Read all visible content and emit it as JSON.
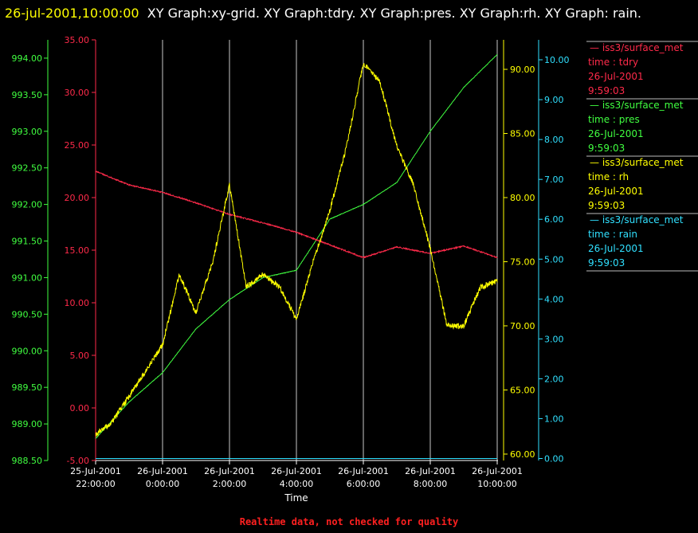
{
  "header": {
    "timestamp": "26-jul-2001,10:00:00",
    "text": "XY Graph:xy-grid.  XY Graph:tdry.  XY Graph:pres.  XY Graph:rh.  XY Graph: rain."
  },
  "footer": {
    "text": "Realtime data, not checked for quality",
    "color": "#ff2020"
  },
  "legend": [
    {
      "series": "— iss3/surface_met",
      "field": "time : tdry",
      "date": "26-Jul-2001",
      "time": "9:59:03",
      "color": "#ff2a4a"
    },
    {
      "series": "— iss3/surface_met",
      "field": "time : pres",
      "date": "26-Jul-2001",
      "time": "9:59:03",
      "color": "#40ff40"
    },
    {
      "series": "— iss3/surface_met",
      "field": "time : rh",
      "date": "26-Jul-2001",
      "time": "9:59:03",
      "color": "#ffff00"
    },
    {
      "series": "— iss3/surface_met",
      "field": "time : rain",
      "date": "26-Jul-2001",
      "time": "9:59:03",
      "color": "#30e0ff"
    }
  ],
  "chart_data": {
    "type": "line",
    "xlabel": "Time",
    "xlim": [
      "25-Jul-2001 22:00:00",
      "26-Jul-2001 10:00:00"
    ],
    "x_ticks": [
      {
        "date": "25-Jul-2001",
        "time": "22:00:00"
      },
      {
        "date": "26-Jul-2001",
        "time": "0:00:00"
      },
      {
        "date": "26-Jul-2001",
        "time": "2:00:00"
      },
      {
        "date": "26-Jul-2001",
        "time": "4:00:00"
      },
      {
        "date": "26-Jul-2001",
        "time": "6:00:00"
      },
      {
        "date": "26-Jul-2001",
        "time": "8:00:00"
      },
      {
        "date": "26-Jul-2001",
        "time": "10:00:00"
      }
    ],
    "x_hours": [
      -2,
      0,
      2,
      4,
      6,
      8,
      10
    ],
    "grid_vertical": true,
    "axes": {
      "tdry": {
        "color": "#ff2a4a",
        "ylim": [
          -5,
          35
        ],
        "ticks": [
          "-5.00",
          "0.00",
          "5.00",
          "10.00",
          "15.00",
          "20.00",
          "25.00",
          "30.00",
          "35.00"
        ]
      },
      "pres": {
        "color": "#40ff40",
        "ylim": [
          988.5,
          994.25
        ],
        "ticks": [
          "988.50",
          "989.00",
          "989.50",
          "990.00",
          "990.50",
          "991.00",
          "991.50",
          "992.00",
          "992.50",
          "993.00",
          "993.50",
          "994.00"
        ]
      },
      "rh": {
        "color": "#ffff00",
        "ylim": [
          59.5,
          92.3
        ],
        "ticks": [
          "60.00",
          "65.00",
          "70.00",
          "75.00",
          "80.00",
          "85.00",
          "90.00"
        ]
      },
      "rain": {
        "color": "#30e0ff",
        "ylim": [
          -0.05,
          10.5
        ],
        "ticks": [
          "0.00",
          "1.00",
          "2.00",
          "3.00",
          "4.00",
          "5.00",
          "6.00",
          "7.00",
          "8.00",
          "9.00",
          "10.00"
        ]
      }
    },
    "series": [
      {
        "key": "tdry",
        "x": [
          "25-Jul-2001 22:00",
          "25-Jul-2001 23:00",
          "26-Jul-2001 00:00",
          "26-Jul-2001 01:00",
          "26-Jul-2001 02:00",
          "26-Jul-2001 03:00",
          "26-Jul-2001 04:00",
          "26-Jul-2001 05:00",
          "26-Jul-2001 06:00",
          "26-Jul-2001 07:00",
          "26-Jul-2001 08:00",
          "26-Jul-2001 09:00",
          "26-Jul-2001 10:00"
        ],
        "values": [
          22.5,
          21.2,
          20.5,
          19.5,
          18.4,
          17.6,
          16.7,
          15.5,
          14.3,
          15.3,
          14.7,
          15.4,
          14.3
        ]
      },
      {
        "key": "pres",
        "x": [
          "25-Jul-2001 22:00",
          "25-Jul-2001 23:00",
          "26-Jul-2001 00:00",
          "26-Jul-2001 01:00",
          "26-Jul-2001 02:00",
          "26-Jul-2001 03:00",
          "26-Jul-2001 04:00",
          "26-Jul-2001 05:00",
          "26-Jul-2001 06:00",
          "26-Jul-2001 07:00",
          "26-Jul-2001 08:00",
          "26-Jul-2001 09:00",
          "26-Jul-2001 10:00"
        ],
        "values": [
          988.8,
          989.3,
          989.7,
          990.3,
          990.7,
          991.0,
          991.1,
          991.8,
          992.0,
          992.3,
          993.0,
          993.6,
          994.05
        ]
      },
      {
        "key": "rh",
        "x": [
          "25-Jul-2001 22:00",
          "25-Jul-2001 22:30",
          "25-Jul-2001 23:00",
          "25-Jul-2001 23:30",
          "26-Jul-2001 00:00",
          "26-Jul-2001 00:30",
          "26-Jul-2001 01:00",
          "26-Jul-2001 01:30",
          "26-Jul-2001 02:00",
          "26-Jul-2001 02:30",
          "26-Jul-2001 03:00",
          "26-Jul-2001 03:30",
          "26-Jul-2001 04:00",
          "26-Jul-2001 04:30",
          "26-Jul-2001 05:00",
          "26-Jul-2001 05:30",
          "26-Jul-2001 06:00",
          "26-Jul-2001 06:30",
          "26-Jul-2001 07:00",
          "26-Jul-2001 07:30",
          "26-Jul-2001 08:00",
          "26-Jul-2001 08:30",
          "26-Jul-2001 09:00",
          "26-Jul-2001 09:30",
          "26-Jul-2001 10:00"
        ],
        "values": [
          61.5,
          62.5,
          64.5,
          66.5,
          68.5,
          74.0,
          71.0,
          75.0,
          81.0,
          73.0,
          74.0,
          73.0,
          70.5,
          75.0,
          79.0,
          84.0,
          90.5,
          89.0,
          84.0,
          81.0,
          76.0,
          70.0,
          70.0,
          73.0,
          73.5
        ]
      },
      {
        "key": "rain",
        "x": [
          "25-Jul-2001 22:00",
          "26-Jul-2001 10:00"
        ],
        "values": [
          0.0,
          0.0
        ]
      }
    ]
  }
}
